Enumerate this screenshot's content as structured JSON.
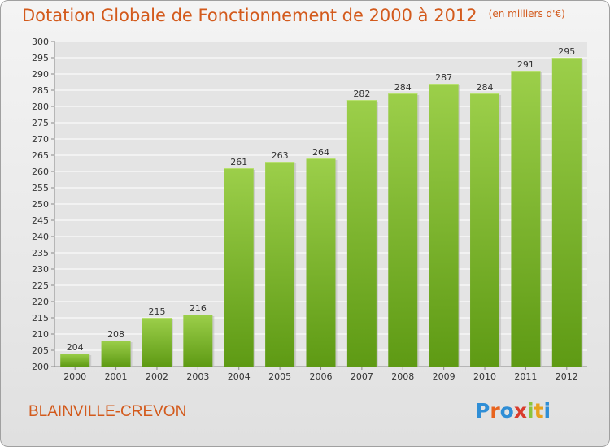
{
  "header": {
    "title": "Dotation Globale de Fonctionnement de 2000 à 2012",
    "unit": "(en milliers d'€)"
  },
  "footer": {
    "commune": "BLAINVILLE-CREVON",
    "logo_text": "Proxiti"
  },
  "colors": {
    "title": "#d35a1c",
    "bar_top": "#9ccf4a",
    "bar_bottom": "#5e9a14",
    "grid": "#ffffff"
  },
  "chart_data": {
    "type": "bar",
    "categories": [
      "2000",
      "2001",
      "2002",
      "2003",
      "2004",
      "2005",
      "2006",
      "2007",
      "2008",
      "2009",
      "2010",
      "2011",
      "2012"
    ],
    "values": [
      204,
      208,
      215,
      216,
      261,
      263,
      264,
      282,
      284,
      287,
      284,
      291,
      295
    ],
    "data_labels": [
      "204",
      "208",
      "215",
      "216",
      "261",
      "263",
      "264",
      "282",
      "284",
      "287",
      "284",
      "291",
      "295"
    ],
    "ylim": [
      200,
      300
    ],
    "yticks": [
      "200",
      "205",
      "210",
      "215",
      "220",
      "225",
      "230",
      "235",
      "240",
      "245",
      "250",
      "255",
      "260",
      "265",
      "270",
      "275",
      "280",
      "285",
      "290",
      "295",
      "300"
    ],
    "grid": true,
    "legend": "none"
  }
}
